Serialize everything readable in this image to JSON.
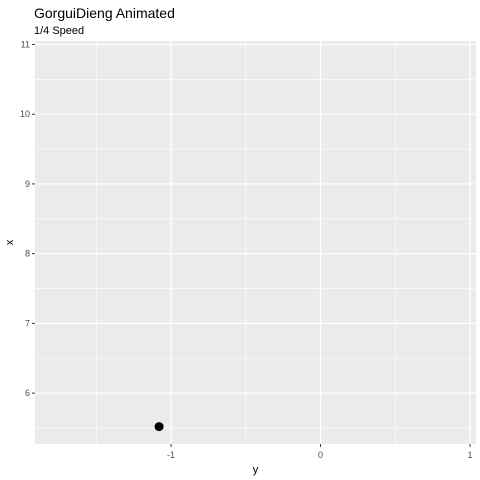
{
  "chart_data": {
    "type": "scatter",
    "title": "GorguiDieng Animated",
    "subtitle": "1/4 Speed",
    "xlabel": "y",
    "ylabel": "x",
    "xlim": [
      -1.91,
      1.04
    ],
    "ylim": [
      5.27,
      11.05
    ],
    "xticks": [
      -1,
      0,
      1
    ],
    "xtick_labels": [
      "-1",
      "0",
      "1"
    ],
    "yticks": [
      6,
      7,
      8,
      9,
      10,
      11
    ],
    "ytick_labels": [
      "6",
      "7",
      "8",
      "9",
      "10",
      "11"
    ],
    "grid": true,
    "points": [
      {
        "x": -1.08,
        "y": 5.52
      }
    ],
    "colors": {
      "panel": "#EBEBEB",
      "grid_major": "#FFFFFF",
      "point": "#000000"
    }
  }
}
